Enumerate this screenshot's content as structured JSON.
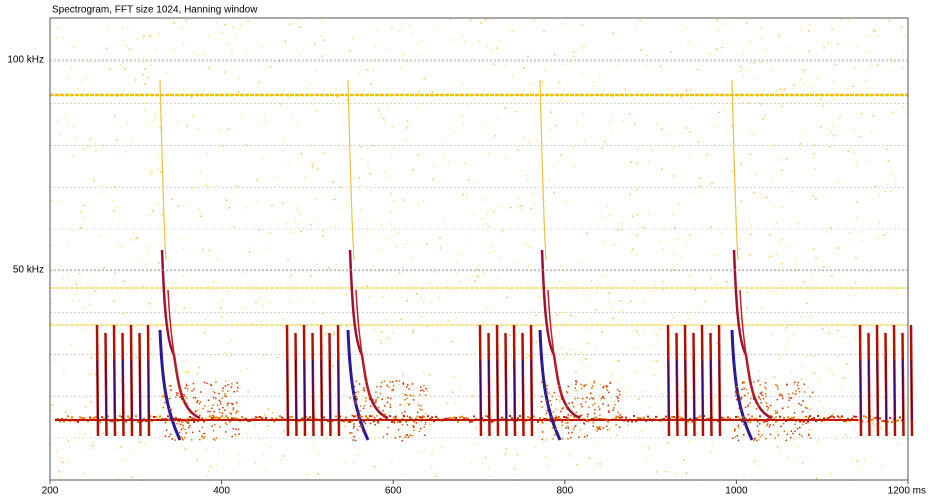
{
  "chart_data": {
    "type": "spectrogram",
    "title": "Spectrogram, FFT size 1024, Hanning window",
    "xlim": [
      200,
      1200
    ],
    "xticks": [
      200,
      400,
      600,
      800,
      1000,
      {
        "value": 1200,
        "label": "1200 ms"
      }
    ],
    "ylim": [
      0,
      110
    ],
    "yticks": [
      {
        "value": 50,
        "label": "50 kHz"
      },
      {
        "value": 100,
        "label": "100 kHz"
      }
    ],
    "grid": true
  }
}
